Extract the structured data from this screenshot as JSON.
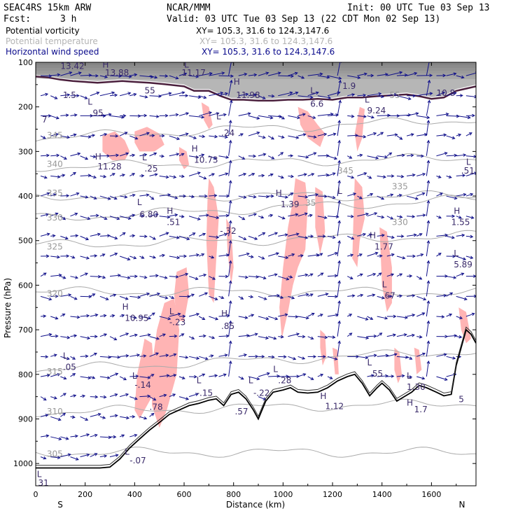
{
  "header": {
    "model": "SEAC4RS 15km ARW",
    "center": "NCAR/MMM",
    "init": "Init: 00 UTC Tue 03 Sep 13",
    "fcst_label": "Fcst:",
    "fcst_value": "3 h",
    "valid": "Valid: 03 UTC Tue 03 Sep 13 (22 CDT Mon 02 Sep 13)"
  },
  "fields": [
    {
      "name": "Potential vorticity",
      "xy": "XY= 105.3, 31.6 to 124.3,147.6",
      "color": "#000000"
    },
    {
      "name": "Potential temperature",
      "xy": "XY= 105.3, 31.6 to 124.3,147.6",
      "color": "#b4b4b4"
    },
    {
      "name": "Horizontal wind speed",
      "xy": "XY= 105.3, 31.6 to 124.3,147.6",
      "color": "#0a0a8c"
    }
  ],
  "colors": {
    "pv_fill": "#ffb4b4",
    "pv_strong": "#4a1f3c",
    "theta": "#aaaaaa",
    "wind": "#10108a",
    "terrain": "#000000",
    "anno": "#3a2a6a"
  },
  "chart_data": {
    "type": "cross-section",
    "xlabel": "Distance (km)",
    "ylabel": "Pressure (hPa)",
    "xlim": [
      0,
      1780
    ],
    "ylim": [
      1050,
      100
    ],
    "x_ticks": [
      "0",
      "200",
      "400",
      "600",
      "800",
      "1000",
      "1200",
      "1400",
      "1600"
    ],
    "x_tick_values": [
      0,
      200,
      400,
      600,
      800,
      1000,
      1200,
      1400,
      1600
    ],
    "y_ticks": [
      "100",
      "200",
      "300",
      "400",
      "500",
      "600",
      "700",
      "800",
      "900",
      "1000"
    ],
    "y_tick_values": [
      100,
      200,
      300,
      400,
      500,
      600,
      700,
      800,
      900,
      1000
    ],
    "end_labels": {
      "left": "S",
      "right": "N"
    },
    "terrain": [
      [
        0,
        1010
      ],
      [
        60,
        1010
      ],
      [
        120,
        1010
      ],
      [
        180,
        1010
      ],
      [
        260,
        1010
      ],
      [
        300,
        1008
      ],
      [
        340,
        990
      ],
      [
        380,
        965
      ],
      [
        420,
        945
      ],
      [
        460,
        925
      ],
      [
        500,
        908
      ],
      [
        540,
        890
      ],
      [
        580,
        880
      ],
      [
        620,
        870
      ],
      [
        660,
        865
      ],
      [
        700,
        858
      ],
      [
        730,
        855
      ],
      [
        760,
        870
      ],
      [
        790,
        845
      ],
      [
        820,
        840
      ],
      [
        850,
        855
      ],
      [
        880,
        880
      ],
      [
        900,
        900
      ],
      [
        930,
        860
      ],
      [
        960,
        840
      ],
      [
        1000,
        835
      ],
      [
        1030,
        830
      ],
      [
        1060,
        840
      ],
      [
        1100,
        842
      ],
      [
        1140,
        840
      ],
      [
        1180,
        830
      ],
      [
        1220,
        815
      ],
      [
        1260,
        805
      ],
      [
        1290,
        800
      ],
      [
        1320,
        820
      ],
      [
        1350,
        848
      ],
      [
        1380,
        830
      ],
      [
        1400,
        820
      ],
      [
        1430,
        835
      ],
      [
        1460,
        860
      ],
      [
        1490,
        850
      ],
      [
        1520,
        840
      ],
      [
        1550,
        825
      ],
      [
        1580,
        830
      ],
      [
        1620,
        840
      ],
      [
        1650,
        848
      ],
      [
        1680,
        845
      ],
      [
        1700,
        780
      ],
      [
        1720,
        740
      ],
      [
        1740,
        700
      ],
      [
        1760,
        710
      ],
      [
        1780,
        730
      ]
    ],
    "theta_contours": [
      {
        "label": "305",
        "p": 975
      },
      {
        "label": "310",
        "p": 885
      },
      {
        "label": "315",
        "p": 790
      },
      {
        "label": "320",
        "p": 615
      },
      {
        "label": "325",
        "p": 510
      },
      {
        "label": "330",
        "p": 450
      },
      {
        "label": "335",
        "p": 400
      },
      {
        "label": "340",
        "p": 335
      },
      {
        "label": "345",
        "p": 270
      }
    ],
    "pv_regions": [
      [
        [
          270,
          265
        ],
        [
          320,
          255
        ],
        [
          360,
          275
        ],
        [
          380,
          300
        ],
        [
          360,
          320
        ],
        [
          310,
          320
        ],
        [
          270,
          300
        ]
      ],
      [
        [
          400,
          255
        ],
        [
          450,
          245
        ],
        [
          500,
          260
        ],
        [
          520,
          285
        ],
        [
          480,
          300
        ],
        [
          420,
          300
        ],
        [
          400,
          280
        ]
      ],
      [
        [
          580,
          290
        ],
        [
          610,
          300
        ],
        [
          620,
          330
        ],
        [
          600,
          340
        ],
        [
          580,
          320
        ]
      ],
      [
        [
          670,
          190
        ],
        [
          700,
          200
        ],
        [
          715,
          240
        ],
        [
          700,
          250
        ],
        [
          680,
          230
        ]
      ],
      [
        [
          700,
          360
        ],
        [
          720,
          380
        ],
        [
          740,
          450
        ],
        [
          730,
          540
        ],
        [
          720,
          640
        ],
        [
          700,
          620
        ],
        [
          690,
          500
        ],
        [
          695,
          400
        ]
      ],
      [
        [
          770,
          450
        ],
        [
          790,
          470
        ],
        [
          800,
          560
        ],
        [
          790,
          600
        ],
        [
          775,
          520
        ]
      ],
      [
        [
          1060,
          200
        ],
        [
          1100,
          210
        ],
        [
          1140,
          240
        ],
        [
          1170,
          260
        ],
        [
          1150,
          290
        ],
        [
          1100,
          270
        ],
        [
          1070,
          240
        ]
      ],
      [
        [
          1050,
          360
        ],
        [
          1090,
          370
        ],
        [
          1100,
          420
        ],
        [
          1090,
          520
        ],
        [
          1060,
          560
        ],
        [
          1040,
          600
        ],
        [
          1020,
          660
        ],
        [
          995,
          720
        ],
        [
          985,
          650
        ],
        [
          1000,
          560
        ],
        [
          1020,
          470
        ],
        [
          1040,
          410
        ]
      ],
      [
        [
          1130,
          380
        ],
        [
          1160,
          390
        ],
        [
          1170,
          480
        ],
        [
          1150,
          530
        ],
        [
          1130,
          470
        ]
      ],
      [
        [
          1310,
          200
        ],
        [
          1330,
          205
        ],
        [
          1320,
          270
        ],
        [
          1300,
          300
        ],
        [
          1290,
          260
        ]
      ],
      [
        [
          1290,
          360
        ],
        [
          1320,
          380
        ],
        [
          1330,
          450
        ],
        [
          1310,
          500
        ],
        [
          1300,
          560
        ],
        [
          1280,
          540
        ],
        [
          1285,
          440
        ]
      ],
      [
        [
          1390,
          470
        ],
        [
          1420,
          480
        ],
        [
          1440,
          560
        ],
        [
          1440,
          640
        ],
        [
          1420,
          660
        ],
        [
          1400,
          600
        ]
      ],
      [
        [
          520,
          640
        ],
        [
          560,
          630
        ],
        [
          580,
          700
        ],
        [
          570,
          800
        ],
        [
          530,
          880
        ],
        [
          500,
          920
        ],
        [
          470,
          870
        ],
        [
          470,
          780
        ],
        [
          490,
          700
        ]
      ],
      [
        [
          440,
          720
        ],
        [
          470,
          730
        ],
        [
          480,
          800
        ],
        [
          470,
          850
        ],
        [
          440,
          880
        ],
        [
          420,
          900
        ],
        [
          400,
          880
        ],
        [
          410,
          800
        ],
        [
          430,
          750
        ]
      ],
      [
        [
          570,
          570
        ],
        [
          610,
          560
        ],
        [
          620,
          620
        ],
        [
          600,
          680
        ],
        [
          570,
          680
        ],
        [
          560,
          620
        ]
      ],
      [
        [
          1450,
          740
        ],
        [
          1470,
          750
        ],
        [
          1480,
          800
        ],
        [
          1465,
          820
        ],
        [
          1450,
          790
        ]
      ],
      [
        [
          1530,
          740
        ],
        [
          1550,
          745
        ],
        [
          1560,
          790
        ],
        [
          1540,
          800
        ]
      ],
      [
        [
          1710,
          650
        ],
        [
          1740,
          660
        ],
        [
          1760,
          720
        ],
        [
          1740,
          730
        ],
        [
          1720,
          700
        ]
      ],
      [
        [
          1150,
          700
        ],
        [
          1170,
          710
        ],
        [
          1175,
          760
        ],
        [
          1160,
          780
        ],
        [
          1150,
          740
        ]
      ],
      [
        [
          1200,
          740
        ],
        [
          1220,
          745
        ],
        [
          1225,
          800
        ],
        [
          1210,
          800
        ]
      ]
    ],
    "pv_strong_regions": [
      [
        [
          0,
          100
        ],
        [
          1780,
          100
        ],
        [
          1780,
          150
        ],
        [
          1700,
          160
        ],
        [
          1650,
          175
        ],
        [
          1600,
          178
        ],
        [
          1550,
          172
        ],
        [
          1500,
          168
        ],
        [
          1440,
          170
        ],
        [
          1380,
          172
        ],
        [
          1320,
          175
        ],
        [
          1260,
          175
        ],
        [
          1200,
          180
        ],
        [
          1140,
          178
        ],
        [
          1080,
          180
        ],
        [
          1020,
          180
        ],
        [
          960,
          182
        ],
        [
          900,
          182
        ],
        [
          840,
          180
        ],
        [
          790,
          180
        ],
        [
          750,
          172
        ],
        [
          700,
          160
        ],
        [
          640,
          160
        ],
        [
          600,
          150
        ],
        [
          520,
          145
        ],
        [
          460,
          142
        ],
        [
          400,
          140
        ],
        [
          350,
          138
        ],
        [
          300,
          140
        ],
        [
          250,
          142
        ],
        [
          200,
          140
        ],
        [
          150,
          138
        ],
        [
          100,
          135
        ],
        [
          50,
          130
        ],
        [
          0,
          128
        ]
      ]
    ],
    "hl_labels": [
      {
        "t": "13.42",
        "x": 100,
        "p": 115
      },
      {
        "t": "H",
        "x": 270,
        "p": 112
      },
      {
        "t": "13.88",
        "x": 280,
        "p": 130
      },
      {
        "t": "55",
        "x": 440,
        "p": 170
      },
      {
        "t": "L",
        "x": 600,
        "p": 112
      },
      {
        "t": "11.17",
        "x": 590,
        "p": 130
      },
      {
        "t": "H",
        "x": 800,
        "p": 150
      },
      {
        "t": "11.98",
        "x": 810,
        "p": 180
      },
      {
        "t": "L",
        "x": 1110,
        "p": 170
      },
      {
        "t": "6.6",
        "x": 1110,
        "p": 200
      },
      {
        "t": "1.9",
        "x": 1240,
        "p": 160
      },
      {
        "t": "L",
        "x": 1330,
        "p": 190
      },
      {
        "t": "9.24",
        "x": 1340,
        "p": 215
      },
      {
        "t": "10.8",
        "x": 1620,
        "p": 175
      },
      {
        "t": "1.5",
        "x": 110,
        "p": 180
      },
      {
        "t": "L",
        "x": 210,
        "p": 195
      },
      {
        "t": ".95",
        "x": 220,
        "p": 220
      },
      {
        "t": "7",
        "x": 25,
        "p": 235
      },
      {
        "t": "L",
        "x": 730,
        "p": 228
      },
      {
        "t": ".24",
        "x": 750,
        "p": 265
      },
      {
        "t": "H",
        "x": 240,
        "p": 318
      },
      {
        "t": "11.28",
        "x": 250,
        "p": 340
      },
      {
        "t": "L",
        "x": 430,
        "p": 320
      },
      {
        "t": ".25",
        "x": 440,
        "p": 345
      },
      {
        "t": "H",
        "x": 630,
        "p": 300
      },
      {
        "t": "10.73",
        "x": 640,
        "p": 325
      },
      {
        "t": "L",
        "x": 410,
        "p": 420
      },
      {
        "t": "6.80",
        "x": 420,
        "p": 448
      },
      {
        "t": "H",
        "x": 530,
        "p": 440
      },
      {
        "t": ".51",
        "x": 530,
        "p": 465
      },
      {
        "t": "-.32",
        "x": 745,
        "p": 485
      },
      {
        "t": "H",
        "x": 970,
        "p": 400
      },
      {
        "t": "1.39",
        "x": 990,
        "p": 425
      },
      {
        "t": "H",
        "x": 1690,
        "p": 440
      },
      {
        "t": "1.55",
        "x": 1680,
        "p": 465
      },
      {
        "t": "H",
        "x": 1350,
        "p": 495
      },
      {
        "t": "1.77",
        "x": 1370,
        "p": 520
      },
      {
        "t": "L",
        "x": 1690,
        "p": 535
      },
      {
        "t": "5.89",
        "x": 1690,
        "p": 560
      },
      {
        "t": "L",
        "x": 1220,
        "p": 395
      },
      {
        "t": "L",
        "x": 1740,
        "p": 330
      },
      {
        "t": ".51",
        "x": 1720,
        "p": 350
      },
      {
        "t": "H",
        "x": 350,
        "p": 655
      },
      {
        "t": "10.95",
        "x": 360,
        "p": 680
      },
      {
        "t": "L",
        "x": 540,
        "p": 665
      },
      {
        "t": "-.23",
        "x": 540,
        "p": 690
      },
      {
        "t": "H",
        "x": 750,
        "p": 670
      },
      {
        "t": ".85",
        "x": 750,
        "p": 698
      },
      {
        "t": "L",
        "x": 1400,
        "p": 605
      },
      {
        "t": ".67",
        "x": 1400,
        "p": 630
      },
      {
        "t": "L",
        "x": 110,
        "p": 765
      },
      {
        "t": ".05",
        "x": 110,
        "p": 790
      },
      {
        "t": "L",
        "x": 390,
        "p": 810
      },
      {
        "t": "-.14",
        "x": 400,
        "p": 830
      },
      {
        "t": ".78",
        "x": 460,
        "p": 880
      },
      {
        "t": "L",
        "x": 650,
        "p": 820
      },
      {
        "t": "-.15",
        "x": 650,
        "p": 848
      },
      {
        "t": "L",
        "x": 860,
        "p": 820
      },
      {
        "t": "-.22",
        "x": 880,
        "p": 848
      },
      {
        "t": "L",
        "x": 960,
        "p": 795
      },
      {
        "t": ".28",
        "x": 980,
        "p": 820
      },
      {
        "t": ".57",
        "x": 805,
        "p": 890
      },
      {
        "t": "H",
        "x": 1150,
        "p": 855
      },
      {
        "t": "1.12",
        "x": 1170,
        "p": 878
      },
      {
        "t": "L",
        "x": 1340,
        "p": 780
      },
      {
        "t": ".55",
        "x": 1350,
        "p": 805
      },
      {
        "t": "L",
        "x": 1500,
        "p": 810
      },
      {
        "t": "1.30",
        "x": 1500,
        "p": 835
      },
      {
        "t": "H",
        "x": 1500,
        "p": 870
      },
      {
        "t": "1.7",
        "x": 1530,
        "p": 885
      },
      {
        "t": "5",
        "x": 1710,
        "p": 862
      },
      {
        "t": "L",
        "x": 360,
        "p": 980
      },
      {
        "t": "-.07",
        "x": 380,
        "p": 1000
      },
      {
        "t": "L",
        "x": 5,
        "p": 1030
      },
      {
        "t": "31",
        "x": 10,
        "p": 1050
      }
    ],
    "theta_labels": [
      {
        "t": "305",
        "x": 45,
        "p": 985
      },
      {
        "t": "310",
        "x": 45,
        "p": 890
      },
      {
        "t": "315",
        "x": 45,
        "p": 800
      },
      {
        "t": "320",
        "x": 45,
        "p": 625
      },
      {
        "t": "325",
        "x": 45,
        "p": 520
      },
      {
        "t": "330",
        "x": 45,
        "p": 455
      },
      {
        "t": "335",
        "x": 45,
        "p": 400
      },
      {
        "t": "340",
        "x": 45,
        "p": 335
      },
      {
        "t": "345",
        "x": 45,
        "p": 270
      },
      {
        "t": "345",
        "x": 1220,
        "p": 350
      },
      {
        "t": "335",
        "x": 1440,
        "p": 385
      },
      {
        "t": "330",
        "x": 1440,
        "p": 465
      },
      {
        "t": "35",
        "x": 1090,
        "p": 422
      },
      {
        "t": "55",
        "x": 1430,
        "p": 180
      }
    ],
    "wind_grid": {
      "x_step": 40,
      "p_step": 45,
      "x_start": 20,
      "p_start": 130
    }
  }
}
